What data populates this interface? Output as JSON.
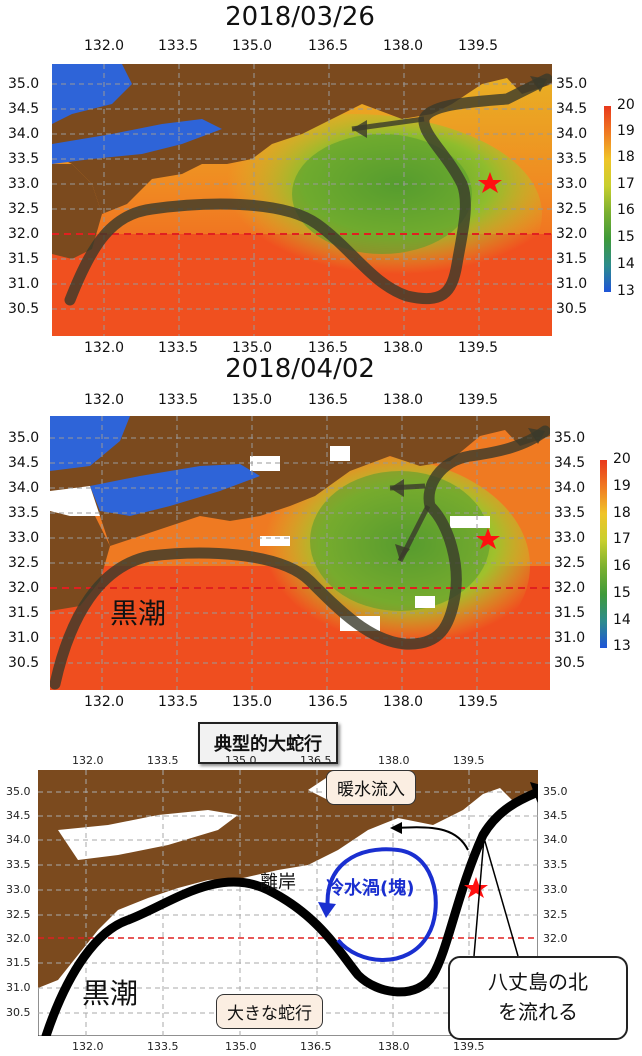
{
  "maps": [
    {
      "id": "map1",
      "date": "2018/03/26",
      "lon_ticks": [
        "132.0",
        "133.5",
        "135.0",
        "136.5",
        "138.0",
        "139.5"
      ],
      "lat_ticks": [
        "35.0",
        "34.5",
        "34.0",
        "33.5",
        "33.0",
        "32.5",
        "32.0",
        "31.5",
        "31.0",
        "30.5"
      ],
      "colorbar": {
        "min": 13,
        "max": 20,
        "ticks": [
          "20",
          "19",
          "18",
          "17",
          "16",
          "15",
          "14",
          "13"
        ]
      }
    },
    {
      "id": "map2",
      "date": "2018/04/02",
      "label_kuroshio": "黒潮",
      "lon_ticks": [
        "132.0",
        "133.5",
        "135.0",
        "136.5",
        "138.0",
        "139.5"
      ],
      "lat_ticks": [
        "35.0",
        "34.5",
        "34.0",
        "33.5",
        "33.0",
        "32.5",
        "32.0",
        "31.5",
        "31.0",
        "30.5"
      ],
      "colorbar": {
        "min": 13,
        "max": 20,
        "ticks": [
          "20",
          "19",
          "18",
          "17",
          "16",
          "15",
          "14",
          "13"
        ]
      }
    }
  ],
  "diagram": {
    "title": "典型的大蛇行",
    "lon_ticks": [
      "132.0",
      "133.5",
      "135.0",
      "136.5",
      "138.0",
      "139.5"
    ],
    "lat_ticks": [
      "35.0",
      "34.5",
      "34.0",
      "33.5",
      "33.0",
      "32.5",
      "32.0",
      "31.5",
      "31.0",
      "30.5"
    ],
    "labels": {
      "warm_inflow": "暖水流入",
      "offshore": "離岸",
      "cold_eddy": "冷水渦(塊)",
      "kuroshio": "黒潮",
      "large_meander": "大きな蛇行",
      "hachijo_line1": "八丈島の北",
      "hachijo_line2": "を流れる"
    }
  },
  "colors": {
    "land": "#7b4a1e",
    "kuroshio_path": "#4a4a3a",
    "marker_star": "#ff1010",
    "reference_line": "#e02020",
    "cold_eddy": "#1a2fd0"
  }
}
